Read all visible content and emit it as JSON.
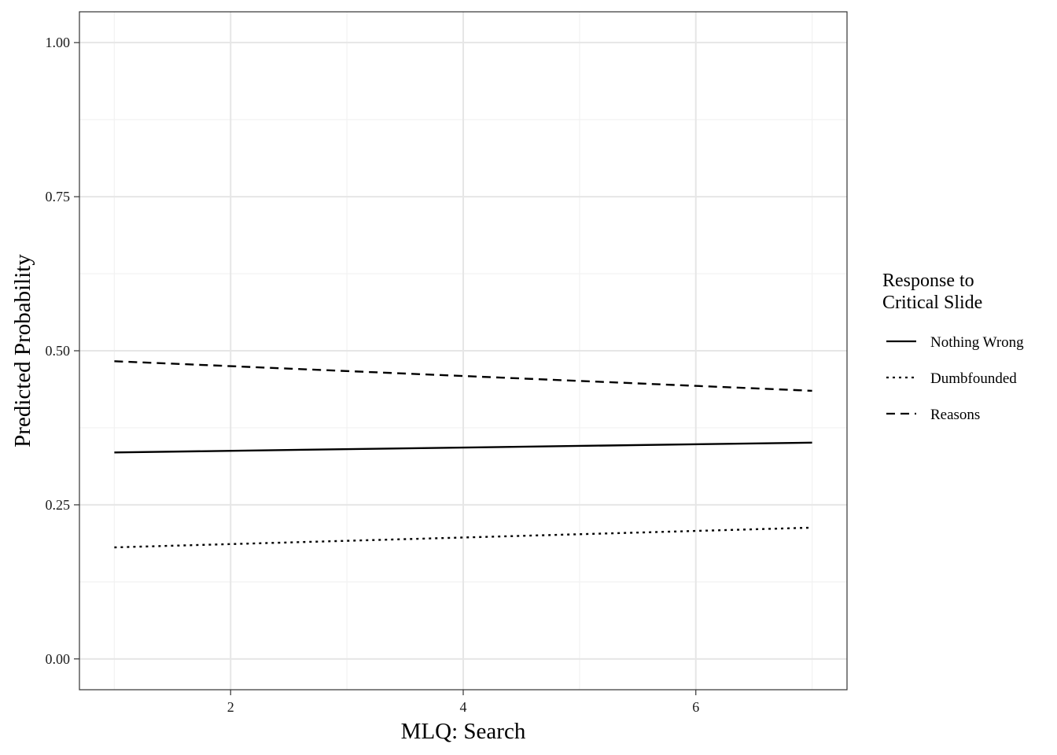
{
  "chart_data": {
    "type": "line",
    "title": "",
    "xlabel": "MLQ: Search",
    "ylabel": "Predicted Probability",
    "xlim": [
      0.7,
      7.3
    ],
    "ylim": [
      -0.05,
      1.05
    ],
    "x_ticks": [
      2,
      4,
      6
    ],
    "x_tick_labels": [
      "2",
      "4",
      "6"
    ],
    "y_ticks": [
      0,
      0.25,
      0.5,
      0.75,
      1
    ],
    "y_tick_labels": [
      "0.00",
      "0.25",
      "0.50",
      "0.75",
      "1.00"
    ],
    "grid": true,
    "legend": {
      "title_lines": [
        "Response to",
        "Critical Slide"
      ],
      "position": "right"
    },
    "series": [
      {
        "name": "Nothing Wrong",
        "line_style": "solid",
        "color": "#000000",
        "x": [
          1,
          7
        ],
        "y": [
          0.335,
          0.351
        ]
      },
      {
        "name": "Dumbfounded",
        "line_style": "dotted",
        "color": "#000000",
        "x": [
          1,
          7
        ],
        "y": [
          0.181,
          0.213
        ]
      },
      {
        "name": "Reasons",
        "line_style": "dashed",
        "color": "#000000",
        "x": [
          1,
          7
        ],
        "y": [
          0.483,
          0.435
        ]
      }
    ]
  }
}
